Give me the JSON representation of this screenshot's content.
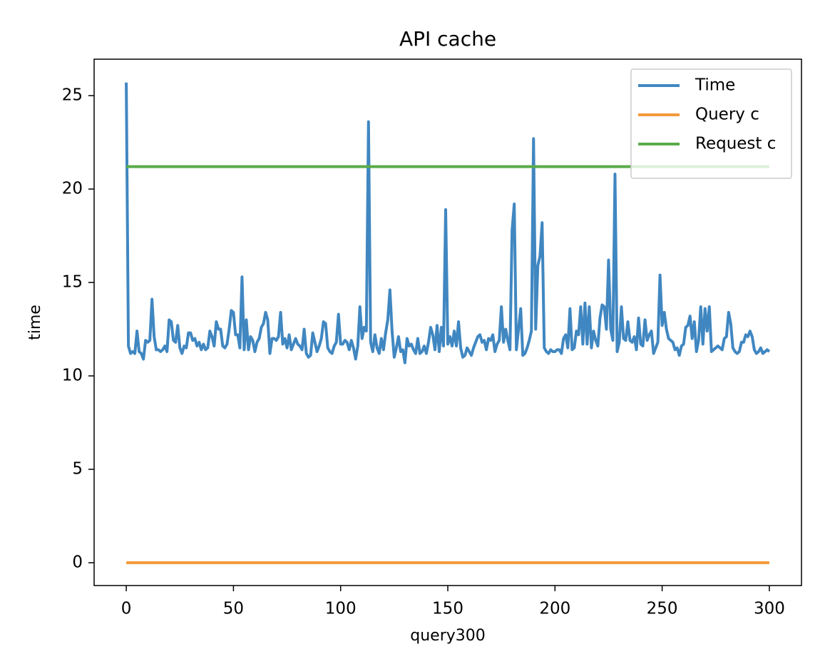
{
  "chart_data": {
    "type": "line",
    "title": "API cache",
    "xlabel": "query300",
    "ylabel": "time",
    "xlim": [
      -15,
      315
    ],
    "ylim": [
      -1.22,
      26.95
    ],
    "xticks": [
      0,
      50,
      100,
      150,
      200,
      250,
      300
    ],
    "yticks": [
      0,
      5,
      10,
      15,
      20,
      25
    ],
    "grid": false,
    "legend": "upper right",
    "series": [
      {
        "name": "Time",
        "color": "#4087c1",
        "x": [
          0,
          1,
          2,
          3,
          4,
          5,
          6,
          7,
          8,
          9,
          10,
          11,
          12,
          13,
          14,
          15,
          16,
          17,
          18,
          19,
          20,
          21,
          22,
          23,
          24,
          25,
          26,
          27,
          28,
          29,
          30,
          31,
          32,
          33,
          34,
          35,
          36,
          37,
          38,
          39,
          40,
          41,
          42,
          43,
          44,
          45,
          46,
          47,
          48,
          49,
          50,
          51,
          52,
          53,
          54,
          55,
          56,
          57,
          58,
          59,
          60,
          61,
          62,
          63,
          64,
          65,
          66,
          67,
          68,
          69,
          70,
          71,
          72,
          73,
          74,
          75,
          76,
          77,
          78,
          79,
          80,
          81,
          82,
          83,
          84,
          85,
          86,
          87,
          88,
          89,
          90,
          91,
          92,
          93,
          94,
          95,
          96,
          97,
          98,
          99,
          100,
          101,
          102,
          103,
          104,
          105,
          106,
          107,
          108,
          109,
          110,
          111,
          112,
          113,
          114,
          115,
          116,
          117,
          118,
          119,
          120,
          121,
          122,
          123,
          124,
          125,
          126,
          127,
          128,
          129,
          130,
          131,
          132,
          133,
          134,
          135,
          136,
          137,
          138,
          139,
          140,
          141,
          142,
          143,
          144,
          145,
          146,
          147,
          148,
          149,
          150,
          151,
          152,
          153,
          154,
          155,
          156,
          157,
          158,
          159,
          160,
          161,
          162,
          163,
          164,
          165,
          166,
          167,
          168,
          169,
          170,
          171,
          172,
          173,
          174,
          175,
          176,
          177,
          178,
          179,
          180,
          181,
          182,
          183,
          184,
          185,
          186,
          187,
          188,
          189,
          190,
          191,
          192,
          193,
          194,
          195,
          196,
          197,
          198,
          199,
          200,
          201,
          202,
          203,
          204,
          205,
          206,
          207,
          208,
          209,
          210,
          211,
          212,
          213,
          214,
          215,
          216,
          217,
          218,
          219,
          220,
          221,
          222,
          223,
          224,
          225,
          226,
          227,
          228,
          229,
          230,
          231,
          232,
          233,
          234,
          235,
          236,
          237,
          238,
          239,
          240,
          241,
          242,
          243,
          244,
          245,
          246,
          247,
          248,
          249,
          250,
          251,
          252,
          253,
          254,
          255,
          256,
          257,
          258,
          259,
          260,
          261,
          262,
          263,
          264,
          265,
          266,
          267,
          268,
          269,
          270,
          271,
          272,
          273,
          274,
          275,
          276,
          277,
          278,
          279,
          280,
          281,
          282,
          283,
          284,
          285,
          286,
          287,
          288,
          289,
          290,
          291,
          292,
          293,
          294,
          295,
          296,
          297,
          298,
          299,
          300
        ],
        "values": [
          25.7,
          11.6,
          11.2,
          11.3,
          11.2,
          12.4,
          11.3,
          11.2,
          10.9,
          11.9,
          11.8,
          11.9,
          14.1,
          12.1,
          11.4,
          11.4,
          11.3,
          11.4,
          11.6,
          11.3,
          13.0,
          12.9,
          11.9,
          11.8,
          12.7,
          11.5,
          11.2,
          11.6,
          11.5,
          12.3,
          12.3,
          11.9,
          12.0,
          11.6,
          11.8,
          11.4,
          11.7,
          11.4,
          11.5,
          12.4,
          12.1,
          11.6,
          12.9,
          12.5,
          12.5,
          11.6,
          11.5,
          11.7,
          12.5,
          13.5,
          13.4,
          12.2,
          12.2,
          11.5,
          15.3,
          11.4,
          13.0,
          11.4,
          12.1,
          11.9,
          11.3,
          11.8,
          12.0,
          12.6,
          12.8,
          13.4,
          13.0,
          11.2,
          12.0,
          12.0,
          11.9,
          12.1,
          13.4,
          11.7,
          12.0,
          11.5,
          12.2,
          11.4,
          11.7,
          12.0,
          11.7,
          11.6,
          11.4,
          12.5,
          11.2,
          11.0,
          11.1,
          12.3,
          11.8,
          11.3,
          11.6,
          12.0,
          12.9,
          12.8,
          11.5,
          11.3,
          11.2,
          11.6,
          11.8,
          13.3,
          11.7,
          11.7,
          11.9,
          11.8,
          11.4,
          11.9,
          11.5,
          10.9,
          11.6,
          13.7,
          12.0,
          12.6,
          12.4,
          23.6,
          11.8,
          11.3,
          12.2,
          11.5,
          11.2,
          12.0,
          11.4,
          12.3,
          13.0,
          14.6,
          12.4,
          11.0,
          11.5,
          12.1,
          11.3,
          11.4,
          10.7,
          12.0,
          11.6,
          11.7,
          11.4,
          11.2,
          12.0,
          11.2,
          11.3,
          11.6,
          11.2,
          11.8,
          12.6,
          12.2,
          11.4,
          12.7,
          11.3,
          12.6,
          11.6,
          18.9,
          11.7,
          12.1,
          11.6,
          12.4,
          11.6,
          12.9,
          11.5,
          11.0,
          11.1,
          11.5,
          11.3,
          11.1,
          11.5,
          11.8,
          12.1,
          12.2,
          11.8,
          11.9,
          11.4,
          12.0,
          11.9,
          12.2,
          11.3,
          11.7,
          11.9,
          13.7,
          11.8,
          12.5,
          11.9,
          11.4,
          17.8,
          19.2,
          11.4,
          12.5,
          13.6,
          11.1,
          11.2,
          11.5,
          11.9,
          12.4,
          22.7,
          12.5,
          15.9,
          16.4,
          18.2,
          11.5,
          11.3,
          11.2,
          11.4,
          11.3,
          11.3,
          11.4,
          11.4,
          11.2,
          12.0,
          12.2,
          11.5,
          13.6,
          11.4,
          11.5,
          12.4,
          12.2,
          13.7,
          11.7,
          13.9,
          11.7,
          13.7,
          11.5,
          12.4,
          11.9,
          11.6,
          13.1,
          13.8,
          13.7,
          12.5,
          16.2,
          12.5,
          11.9,
          20.8,
          11.3,
          11.8,
          13.7,
          12.0,
          11.9,
          12.9,
          11.9,
          11.8,
          12.1,
          11.4,
          13.1,
          11.7,
          11.6,
          13.0,
          11.9,
          12.2,
          12.4,
          11.2,
          11.5,
          11.8,
          15.4,
          12.7,
          13.4,
          12.5,
          12.0,
          11.9,
          11.8,
          11.4,
          11.5,
          11.1,
          11.6,
          11.7,
          12.6,
          12.7,
          13.2,
          12.0,
          12.9,
          11.3,
          11.9,
          13.7,
          11.7,
          13.6,
          12.4,
          13.7,
          11.3,
          11.4,
          11.5,
          11.6,
          11.5,
          11.4,
          12.0,
          12.1,
          13.4,
          12.8,
          11.5,
          11.3,
          11.2,
          11.3,
          11.8,
          11.8,
          12.2,
          12.1,
          12.4,
          12.1,
          11.4,
          11.2,
          11.3,
          11.5,
          11.2,
          11.3,
          11.4,
          11.3
        ]
      },
      {
        "name": "Query c",
        "color": "#f39a3a",
        "x": [
          0,
          300
        ],
        "values": [
          0,
          0
        ]
      },
      {
        "name": "Request c",
        "color": "#5aab4a",
        "x": [
          0,
          300
        ],
        "values": [
          21.2,
          21.2
        ]
      }
    ]
  }
}
